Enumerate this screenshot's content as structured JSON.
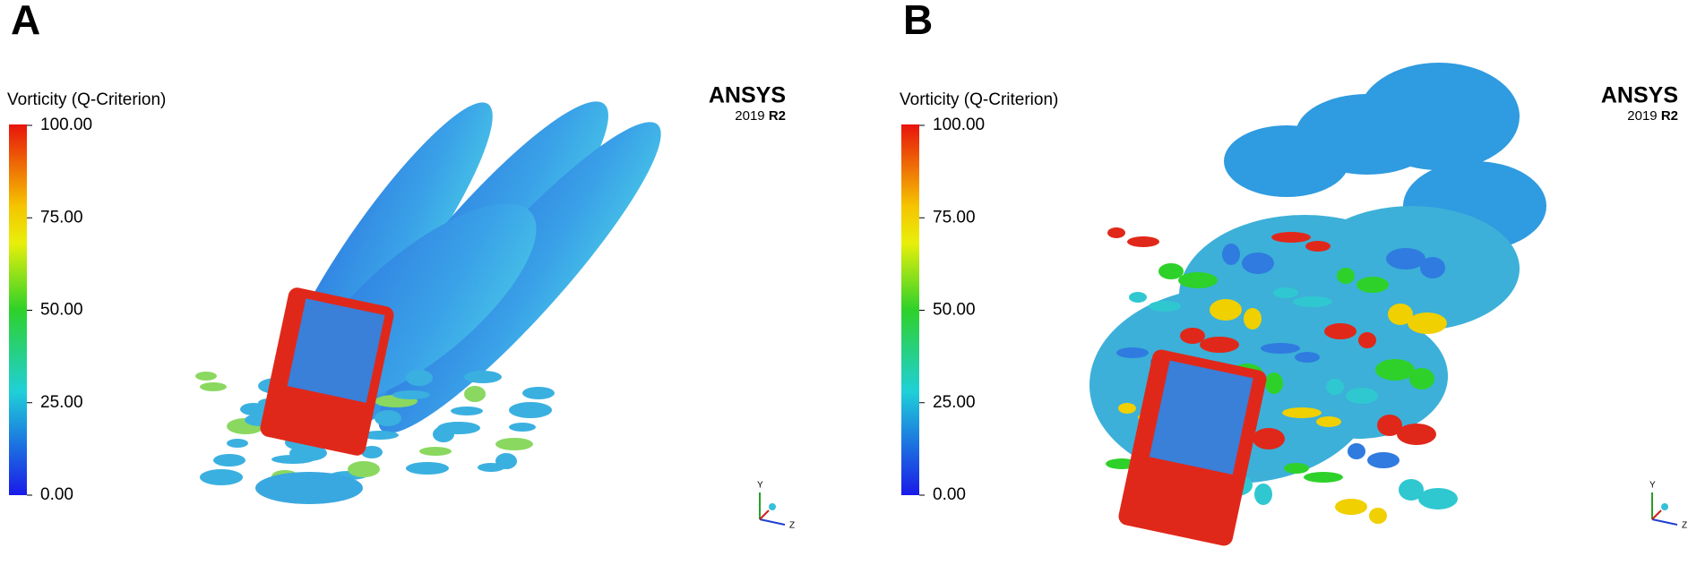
{
  "panels": [
    {
      "label": "A",
      "legend_title": "Vorticity (Q-Criterion)",
      "legend_ticks": [
        "100.00",
        "75.00",
        "50.00",
        "25.00",
        "0.00"
      ],
      "brand": "ANSYS",
      "version": "2019",
      "release": "R2",
      "axes": [
        "Y",
        "Z"
      ]
    },
    {
      "label": "B",
      "legend_title": "Vorticity (Q-Criterion)",
      "legend_ticks": [
        "100.00",
        "75.00",
        "50.00",
        "25.00",
        "0.00"
      ],
      "brand": "ANSYS",
      "version": "2019",
      "release": "R2",
      "axes": [
        "Y",
        "Z"
      ]
    }
  ]
}
